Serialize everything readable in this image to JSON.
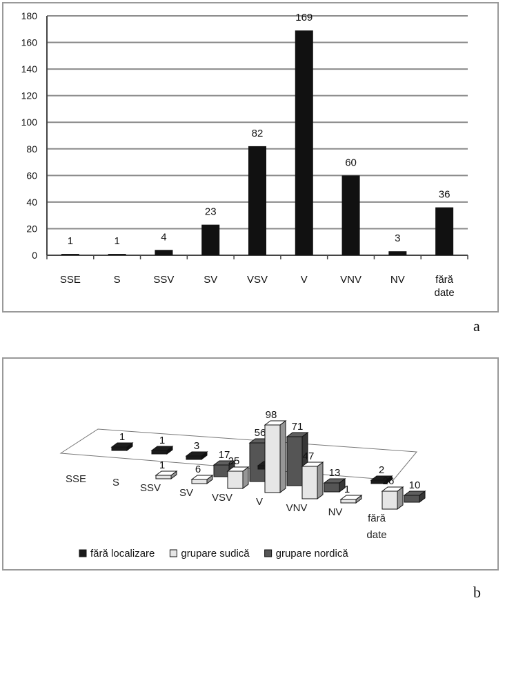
{
  "chart_data": [
    {
      "panel": "a",
      "type": "bar",
      "categories": [
        "SSE",
        "S",
        "SSV",
        "SV",
        "VSV",
        "V",
        "VNV",
        "NV",
        "fără date"
      ],
      "values": [
        1,
        1,
        4,
        23,
        82,
        169,
        60,
        3,
        36
      ],
      "ylim": [
        0,
        180
      ],
      "yticks": [
        0,
        20,
        40,
        60,
        80,
        100,
        120,
        140,
        160,
        180
      ],
      "grid": true,
      "legend": "none",
      "colors": {
        "bar": "#111111",
        "grid": "#8a8a8a",
        "frame": "#999999"
      }
    },
    {
      "panel": "b",
      "type": "bar",
      "style": "3d",
      "categories": [
        "SSE",
        "S",
        "SSV",
        "SV",
        "VSV",
        "V",
        "VNV",
        "NV",
        "fără date"
      ],
      "series": [
        {
          "name": "fără localizare",
          "values": [
            1,
            1,
            3,
            null,
            1,
            null,
            null,
            2,
            null
          ]
        },
        {
          "name": "grupare sudică",
          "values": [
            null,
            null,
            1,
            6,
            25,
            98,
            47,
            1,
            26
          ]
        },
        {
          "name": "grupare nordică",
          "values": [
            null,
            null,
            null,
            17,
            56,
            71,
            13,
            null,
            10
          ]
        }
      ],
      "legend": "bottom",
      "colors": {
        "fără localizare": "#1a1a1a",
        "grupare sudică": "#e6e6e6",
        "grupare nordică": "#555555"
      }
    }
  ],
  "labels": {
    "panel_a": "a",
    "panel_b": "b"
  }
}
